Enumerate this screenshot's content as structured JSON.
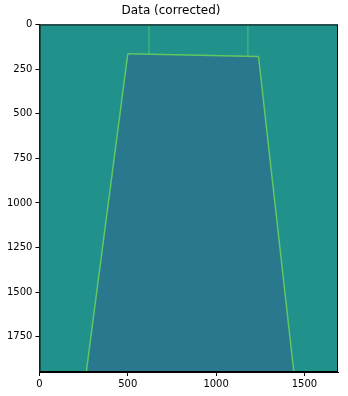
{
  "chart_data": {
    "type": "line",
    "title": "Data (corrected)",
    "xlim": [
      0,
      1690
    ],
    "xticks": [
      0,
      500,
      1000,
      1500
    ],
    "ylim": [
      1947,
      0
    ],
    "yticks": [
      0,
      250,
      500,
      750,
      1000,
      1250,
      1500,
      1750
    ],
    "grid": false,
    "series": [
      {
        "color": "#2a788e",
        "x": [
          500,
          1240,
          1440,
          265,
          500
        ],
        "values": [
          165,
          180,
          1947,
          1947,
          165
        ]
      },
      {
        "color": "#35b779",
        "x": [
          620,
          620
        ],
        "values": [
          0,
          165
        ]
      },
      {
        "color": "#35b779",
        "x": [
          1180,
          1180
        ],
        "values": [
          0,
          178
        ]
      },
      {
        "color": "#5ec962",
        "x": [
          500,
          1240
        ],
        "values": [
          165,
          180
        ]
      },
      {
        "color": "#5ec962",
        "x": [
          500,
          265
        ],
        "values": [
          165,
          1947
        ]
      },
      {
        "color": "#5ec962",
        "x": [
          1240,
          1440
        ],
        "values": [
          180,
          1947
        ]
      }
    ]
  }
}
